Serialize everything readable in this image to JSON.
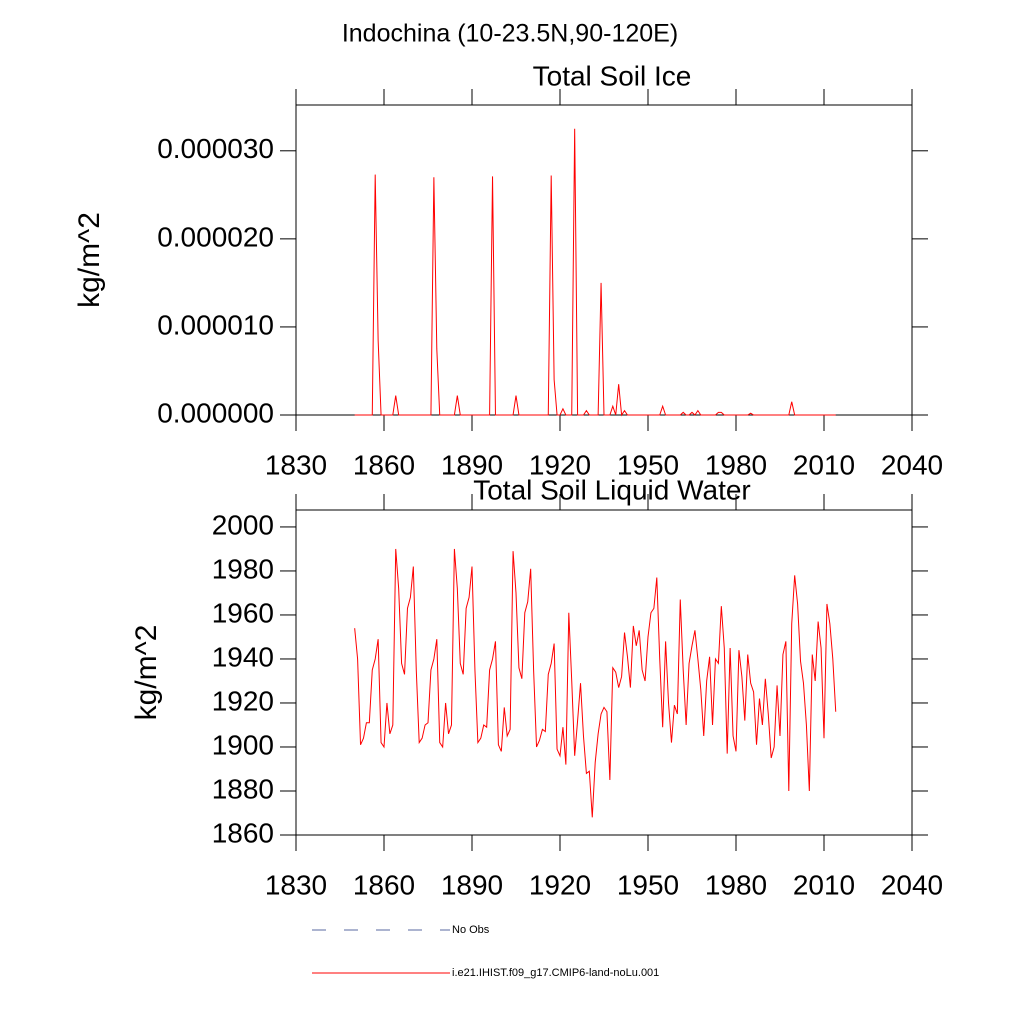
{
  "title": "Indochina (10-23.5N,90-120E)",
  "chart_data": [
    {
      "type": "line",
      "title": "Total Soil Ice",
      "ylabel": "kg/m^2",
      "x": [
        1850,
        1851,
        1852,
        1853,
        1854,
        1855,
        1856,
        1857,
        1858,
        1859,
        1860,
        1861,
        1862,
        1863,
        1864,
        1865,
        1866,
        1867,
        1868,
        1869,
        1870,
        1871,
        1872,
        1873,
        1874,
        1875,
        1876,
        1877,
        1878,
        1879,
        1880,
        1881,
        1882,
        1883,
        1884,
        1885,
        1886,
        1887,
        1888,
        1889,
        1890,
        1891,
        1892,
        1893,
        1894,
        1895,
        1896,
        1897,
        1898,
        1899,
        1900,
        1901,
        1902,
        1903,
        1904,
        1905,
        1906,
        1907,
        1908,
        1909,
        1910,
        1911,
        1912,
        1913,
        1914,
        1915,
        1916,
        1917,
        1918,
        1919,
        1920,
        1921,
        1922,
        1923,
        1924,
        1925,
        1926,
        1927,
        1928,
        1929,
        1930,
        1931,
        1932,
        1933,
        1934,
        1935,
        1936,
        1937,
        1938,
        1939,
        1940,
        1941,
        1942,
        1943,
        1944,
        1945,
        1946,
        1947,
        1948,
        1949,
        1950,
        1951,
        1952,
        1953,
        1954,
        1955,
        1956,
        1957,
        1958,
        1959,
        1960,
        1961,
        1962,
        1963,
        1964,
        1965,
        1966,
        1967,
        1968,
        1969,
        1970,
        1971,
        1972,
        1973,
        1974,
        1975,
        1976,
        1977,
        1978,
        1979,
        1980,
        1981,
        1982,
        1983,
        1984,
        1985,
        1986,
        1987,
        1988,
        1989,
        1990,
        1991,
        1992,
        1993,
        1994,
        1995,
        1996,
        1997,
        1998,
        1999,
        2000,
        2001,
        2002,
        2003,
        2004,
        2005,
        2006,
        2007,
        2008,
        2009,
        2010,
        2011,
        2012,
        2013,
        2014
      ],
      "series": [
        {
          "color": "#ff0000",
          "values": [
            0,
            0,
            0,
            0,
            0,
            0,
            0,
            2.73e-05,
            8.5e-06,
            0,
            0,
            0,
            0,
            0,
            2.2e-06,
            0,
            0,
            0,
            0,
            0,
            0,
            0,
            0,
            0,
            0,
            0,
            0,
            2.7e-05,
            7.5e-06,
            0,
            0,
            0,
            0,
            0,
            0,
            2.2e-06,
            0,
            0,
            0,
            0,
            0,
            0,
            0,
            0,
            0,
            0,
            0,
            2.71e-05,
            0,
            0,
            0,
            0,
            0,
            0,
            0,
            2.2e-06,
            0,
            0,
            0,
            0,
            0,
            0,
            0,
            0,
            0,
            0,
            0,
            2.72e-05,
            4e-06,
            0,
            0,
            7e-07,
            0,
            0,
            0,
            3.25e-05,
            0,
            0,
            0,
            5e-07,
            0,
            0,
            0,
            0,
            1.5e-05,
            0,
            0,
            0,
            1e-06,
            0,
            3.5e-06,
            0,
            5e-07,
            0,
            0,
            0,
            0,
            0,
            0,
            0,
            0,
            0,
            0,
            0,
            0,
            1e-06,
            0,
            0,
            0,
            0,
            0,
            0,
            3e-07,
            0,
            0,
            3e-07,
            0,
            5e-07,
            0,
            0,
            0,
            0,
            0,
            0,
            3e-07,
            3e-07,
            0,
            0,
            0,
            0,
            0,
            0,
            0,
            0,
            0,
            2e-07,
            0,
            0,
            0,
            0,
            0,
            0,
            0,
            0,
            0,
            0,
            0,
            0,
            0,
            1.5e-06,
            0,
            0,
            0,
            0,
            0,
            0,
            0,
            0,
            0,
            0,
            0,
            0,
            0,
            0,
            0
          ]
        }
      ],
      "xlim": [
        1830,
        2040
      ],
      "xticks": [
        1830,
        1860,
        1890,
        1920,
        1950,
        1980,
        2010,
        2040
      ],
      "ylim": [
        0,
        3.52e-05
      ],
      "yticks": [
        {
          "value": 0,
          "label": "0.000000"
        },
        {
          "value": 1e-05,
          "label": "0.000010"
        },
        {
          "value": 2e-05,
          "label": "0.000020"
        },
        {
          "value": 3e-05,
          "label": "0.000030"
        }
      ]
    },
    {
      "type": "line",
      "title": "Total Soil Liquid Water",
      "ylabel": "kg/m^2",
      "x": [
        1850,
        1851,
        1852,
        1853,
        1854,
        1855,
        1856,
        1857,
        1858,
        1859,
        1860,
        1861,
        1862,
        1863,
        1864,
        1865,
        1866,
        1867,
        1868,
        1869,
        1870,
        1871,
        1872,
        1873,
        1874,
        1875,
        1876,
        1877,
        1878,
        1879,
        1880,
        1881,
        1882,
        1883,
        1884,
        1885,
        1886,
        1887,
        1888,
        1889,
        1890,
        1891,
        1892,
        1893,
        1894,
        1895,
        1896,
        1897,
        1898,
        1899,
        1900,
        1901,
        1902,
        1903,
        1904,
        1905,
        1906,
        1907,
        1908,
        1909,
        1910,
        1911,
        1912,
        1913,
        1914,
        1915,
        1916,
        1917,
        1918,
        1919,
        1920,
        1921,
        1922,
        1923,
        1924,
        1925,
        1926,
        1927,
        1928,
        1929,
        1930,
        1931,
        1932,
        1933,
        1934,
        1935,
        1936,
        1937,
        1938,
        1939,
        1940,
        1941,
        1942,
        1943,
        1944,
        1945,
        1946,
        1947,
        1948,
        1949,
        1950,
        1951,
        1952,
        1953,
        1954,
        1955,
        1956,
        1957,
        1958,
        1959,
        1960,
        1961,
        1962,
        1963,
        1964,
        1965,
        1966,
        1967,
        1968,
        1969,
        1970,
        1971,
        1972,
        1973,
        1974,
        1975,
        1976,
        1977,
        1978,
        1979,
        1980,
        1981,
        1982,
        1983,
        1984,
        1985,
        1986,
        1987,
        1988,
        1989,
        1990,
        1991,
        1992,
        1993,
        1994,
        1995,
        1996,
        1997,
        1998,
        1999,
        2000,
        2001,
        2002,
        2003,
        2004,
        2005,
        2006,
        2007,
        2008,
        2009,
        2010,
        2011,
        2012,
        2013,
        2014
      ],
      "series": [
        {
          "color": "#ff0000",
          "values": [
            1954,
            1940,
            1901,
            1904,
            1911,
            1911,
            1935,
            1940,
            1949,
            1902,
            1900,
            1920,
            1906,
            1910,
            1990,
            1972,
            1938,
            1933,
            1963,
            1968,
            1982,
            1935,
            1902,
            1904,
            1910,
            1911,
            1935,
            1940,
            1949,
            1902,
            1900,
            1920,
            1906,
            1910,
            1990,
            1972,
            1938,
            1933,
            1963,
            1968,
            1982,
            1935,
            1902,
            1904,
            1910,
            1909,
            1935,
            1940,
            1948,
            1901,
            1898,
            1918,
            1905,
            1908,
            1989,
            1970,
            1936,
            1931,
            1961,
            1966,
            1981,
            1935,
            1900,
            1903,
            1908,
            1907,
            1933,
            1938,
            1947,
            1899,
            1896,
            1909,
            1892,
            1961,
            1930,
            1896,
            1912,
            1929,
            1905,
            1888,
            1889,
            1868,
            1893,
            1906,
            1915,
            1918,
            1916,
            1885,
            1936,
            1934,
            1927,
            1932,
            1952,
            1941,
            1927,
            1955,
            1946,
            1953,
            1935,
            1930,
            1950,
            1961,
            1963,
            1977,
            1940,
            1909,
            1948,
            1920,
            1902,
            1919,
            1915,
            1967,
            1935,
            1910,
            1938,
            1946,
            1953,
            1940,
            1926,
            1905,
            1930,
            1941,
            1910,
            1940,
            1938,
            1964,
            1945,
            1897,
            1945,
            1905,
            1898,
            1944,
            1932,
            1912,
            1942,
            1929,
            1925,
            1901,
            1922,
            1910,
            1931,
            1915,
            1895,
            1900,
            1928,
            1905,
            1942,
            1948,
            1880,
            1956,
            1978,
            1965,
            1939,
            1929,
            1910,
            1880,
            1942,
            1930,
            1957,
            1945,
            1904,
            1965,
            1956,
            1940,
            1916
          ]
        }
      ],
      "xlim": [
        1830,
        2040
      ],
      "xticks": [
        1830,
        1860,
        1890,
        1920,
        1950,
        1980,
        2010,
        2040
      ],
      "ylim": [
        1860,
        2007.7
      ],
      "yticks": [
        1860,
        1880,
        1900,
        1920,
        1940,
        1960,
        1980,
        2000
      ]
    }
  ],
  "legend": [
    {
      "label": "No Obs",
      "color": "#5a6aa0",
      "style": "dashed"
    },
    {
      "label": "i.e21.IHIST.f09_g17.CMIP6-land-noLu.001",
      "color": "#ff0000",
      "style": "solid"
    }
  ]
}
